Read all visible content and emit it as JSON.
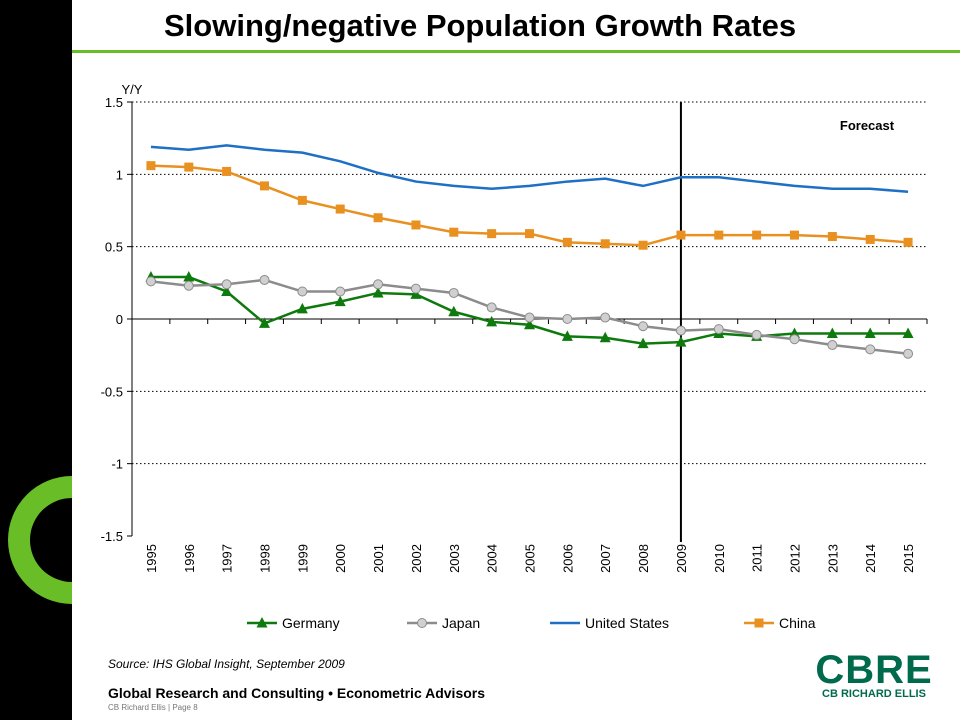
{
  "slide": {
    "title": "Slowing/negative Population Growth Rates",
    "source": "Source: IHS Global Insight, September 2009",
    "footer": "Global Research and Consulting • Econometric Advisors",
    "footer_small": "CB Richard Ellis | Page 8",
    "logo_main": "CBRE",
    "logo_sub": "CB RICHARD ELLIS",
    "accent_color": "#69BE28",
    "logo_color": "#006A4D"
  },
  "chart_data": {
    "type": "line",
    "ylabel": "Y/Y",
    "ylim": [
      -1.5,
      1.5
    ],
    "yticks": [
      -1.5,
      -1,
      -0.5,
      0,
      0.5,
      1,
      1.5
    ],
    "ytick_labels": [
      "-1.5",
      "-1",
      "-0.5",
      "0",
      "0.5",
      "1",
      "1.5"
    ],
    "grid": "horizontal dotted",
    "legend_position": "bottom",
    "categories": [
      "1995",
      "1996",
      "1997",
      "1998",
      "1999",
      "2000",
      "2001",
      "2002",
      "2003",
      "2004",
      "2005",
      "2006",
      "2007",
      "2008",
      "2009",
      "2010",
      "2011",
      "2012",
      "2013",
      "2014",
      "2015"
    ],
    "forecast_start": "2009",
    "forecast_label": "Forecast",
    "series": [
      {
        "name": "Germany",
        "color": "#0E7A0D",
        "marker": "triangle",
        "values": [
          0.29,
          0.29,
          0.19,
          -0.03,
          0.07,
          0.12,
          0.18,
          0.17,
          0.05,
          -0.02,
          -0.04,
          -0.12,
          -0.13,
          -0.17,
          -0.16,
          -0.1,
          -0.12,
          -0.1,
          -0.1,
          -0.1,
          -0.1
        ]
      },
      {
        "name": "Japan",
        "color": "#8C8C8C",
        "marker": "circle",
        "values": [
          0.26,
          0.23,
          0.24,
          0.27,
          0.19,
          0.19,
          0.24,
          0.21,
          0.18,
          0.08,
          0.01,
          0.0,
          0.01,
          -0.05,
          -0.08,
          -0.07,
          -0.11,
          -0.14,
          -0.18,
          -0.21,
          -0.24
        ]
      },
      {
        "name": "United States",
        "color": "#1F6FC5",
        "marker": "none",
        "values": [
          1.19,
          1.17,
          1.2,
          1.17,
          1.15,
          1.09,
          1.01,
          0.95,
          0.92,
          0.9,
          0.92,
          0.95,
          0.97,
          0.92,
          0.98,
          0.98,
          0.95,
          0.92,
          0.9,
          0.9,
          0.88
        ]
      },
      {
        "name": "China",
        "color": "#E89020",
        "marker": "square",
        "values": [
          1.06,
          1.05,
          1.02,
          0.92,
          0.82,
          0.76,
          0.7,
          0.65,
          0.6,
          0.59,
          0.59,
          0.53,
          0.52,
          0.51,
          0.58,
          0.58,
          0.58,
          0.58,
          0.57,
          0.55,
          0.53
        ]
      }
    ]
  }
}
